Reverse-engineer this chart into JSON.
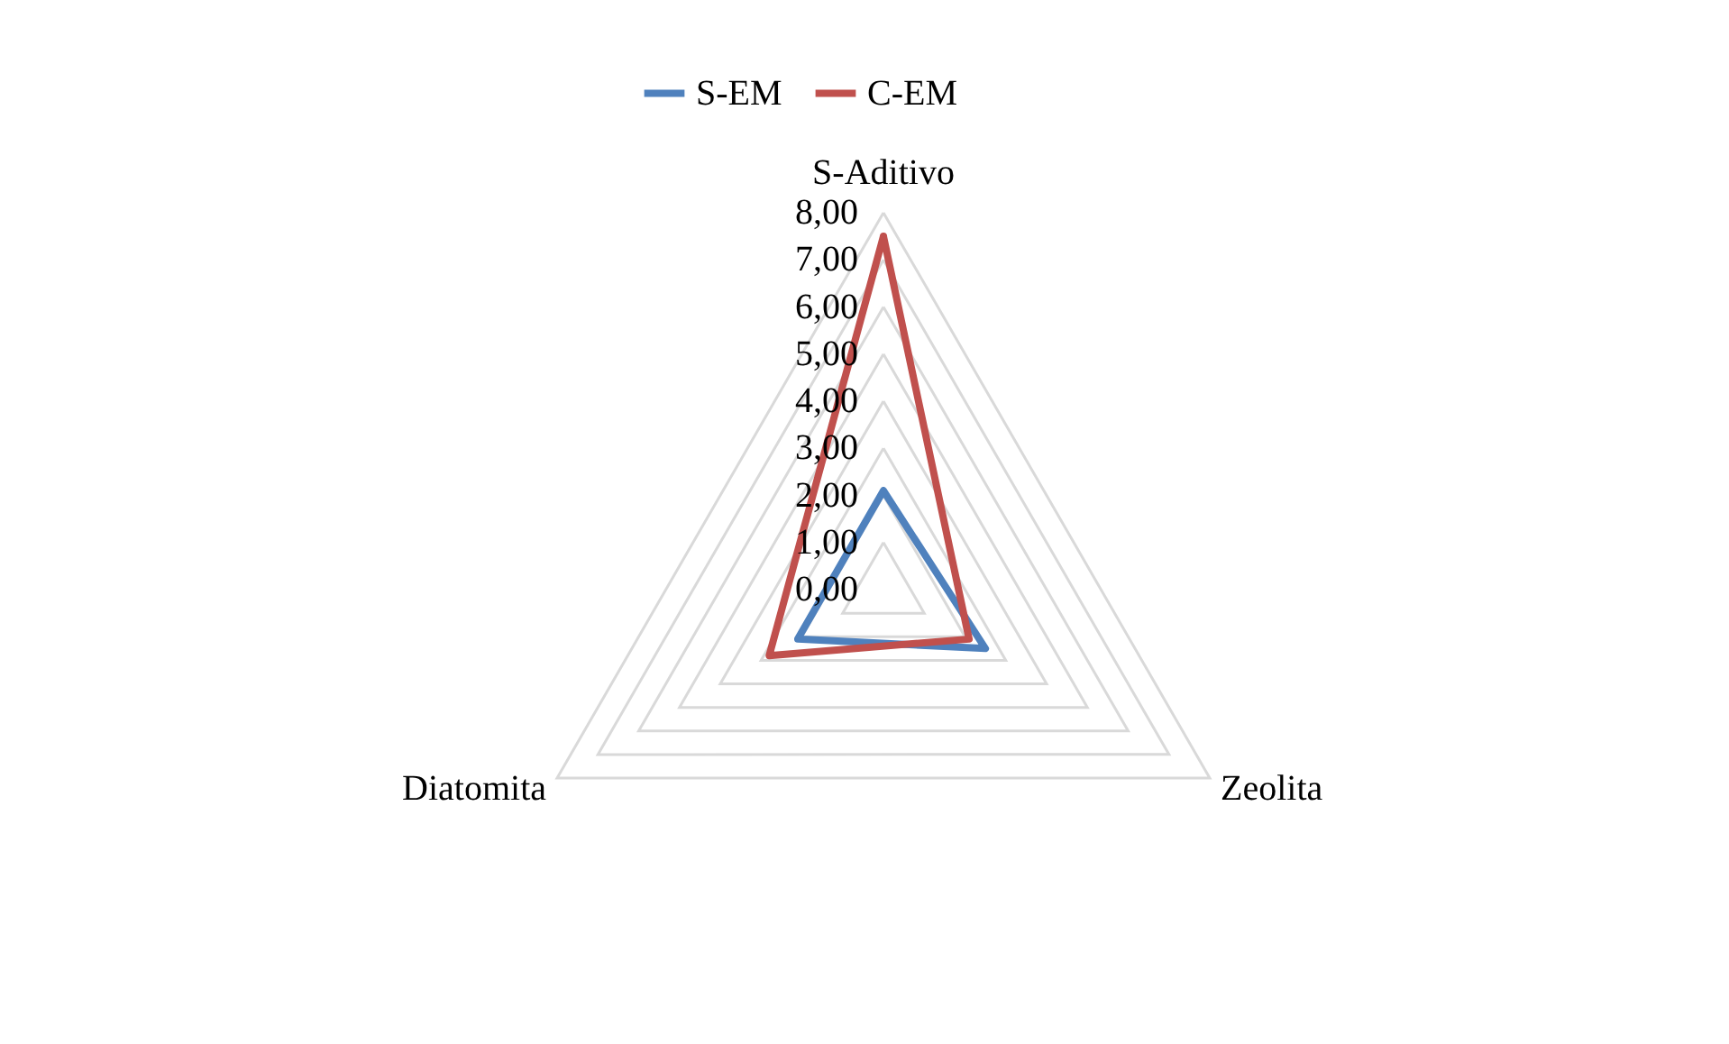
{
  "chart_data": {
    "type": "radar",
    "categories": [
      "S-Aditivo",
      "Zeolita",
      "Diatomita"
    ],
    "series": [
      {
        "name": "S-EM",
        "color": "#4f81bd",
        "values": [
          2.1,
          2.5,
          2.1
        ]
      },
      {
        "name": "C-EM",
        "color": "#c0504d",
        "values": [
          7.5,
          2.1,
          2.8
        ]
      }
    ],
    "ylim": [
      0,
      8
    ],
    "yticks": [
      {
        "value": 0,
        "label": "0,00"
      },
      {
        "value": 1,
        "label": "1,00"
      },
      {
        "value": 2,
        "label": "2,00"
      },
      {
        "value": 3,
        "label": "3,00"
      },
      {
        "value": 4,
        "label": "4,00"
      },
      {
        "value": 5,
        "label": "5,00"
      },
      {
        "value": 6,
        "label": "6,00"
      },
      {
        "value": 7,
        "label": "7,00"
      },
      {
        "value": 8,
        "label": "8,00"
      }
    ],
    "grid": true,
    "legend": "top",
    "line_style": "solid",
    "marker": "none"
  }
}
